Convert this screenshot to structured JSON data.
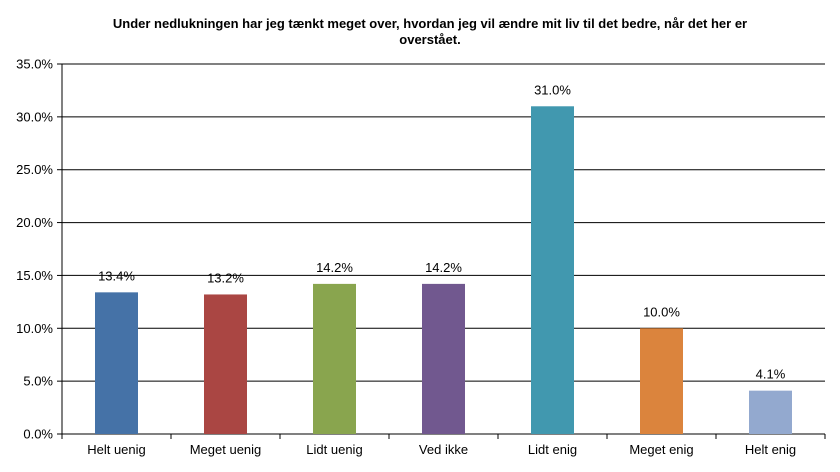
{
  "chart_data": {
    "type": "bar",
    "title": "Under nedlukningen har jeg tænkt meget over, hvordan jeg vil ændre mit liv til det bedre, når det her er overstået.",
    "categories": [
      "Helt uenig",
      "Meget uenig",
      "Lidt uenig",
      "Ved ikke",
      "Lidt enig",
      "Meget enig",
      "Helt enig"
    ],
    "values": [
      13.4,
      13.2,
      14.2,
      14.2,
      31.0,
      10.0,
      4.1
    ],
    "data_labels": [
      "13.4%",
      "13.2%",
      "14.2%",
      "14.2%",
      "31.0%",
      "10.0%",
      "4.1%"
    ],
    "colors": [
      "#4572a7",
      "#aa4643",
      "#89a54e",
      "#71588f",
      "#4198af",
      "#db843d",
      "#93a9cf"
    ],
    "ylim": [
      0,
      35
    ],
    "yticks": [
      "0.0%",
      "5.0%",
      "10.0%",
      "15.0%",
      "20.0%",
      "25.0%",
      "30.0%",
      "35.0%"
    ],
    "grid": true,
    "legend": "none",
    "xlabel": "",
    "ylabel": ""
  }
}
